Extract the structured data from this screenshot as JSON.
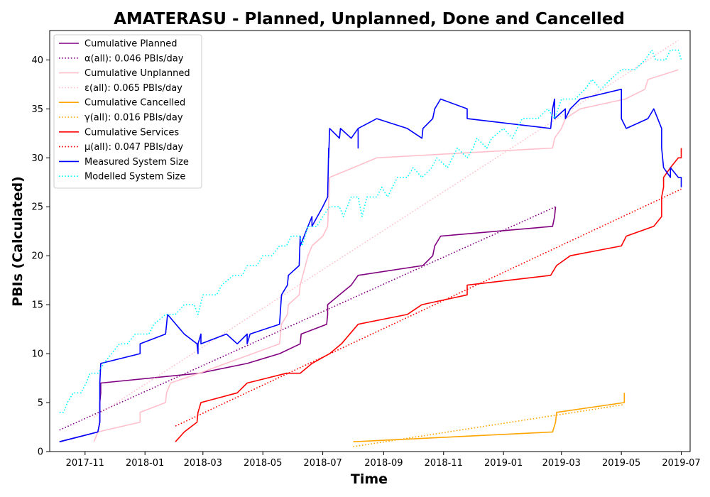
{
  "chart_data": {
    "type": "line",
    "title": "AMATERASU - Planned, Unplanned, Done  and Cancelled",
    "xlabel": "Time",
    "ylabel": "PBIs (Calculated)",
    "xlim": [
      "2017-09-26",
      "2019-07-10"
    ],
    "ylim": [
      0,
      43
    ],
    "x_ticks": [
      "2017-11",
      "2018-01",
      "2018-03",
      "2018-05",
      "2018-07",
      "2018-09",
      "2018-11",
      "2019-01",
      "2019-03",
      "2019-05",
      "2019-07"
    ],
    "y_ticks": [
      0,
      5,
      10,
      15,
      20,
      25,
      30,
      35,
      40
    ],
    "grid": false,
    "legend_position": "top-left",
    "series": [
      {
        "name": "Cumulative Planned",
        "color": "#800080",
        "style": "solid",
        "points": [
          [
            "2017-10-06",
            1
          ],
          [
            "2017-11-14",
            2
          ],
          [
            "2017-11-16",
            3
          ],
          [
            "2017-11-16",
            5
          ],
          [
            "2017-11-17",
            6
          ],
          [
            "2017-11-17",
            7
          ],
          [
            "2018-02-25",
            8
          ],
          [
            "2018-04-15",
            9
          ],
          [
            "2018-05-18",
            10
          ],
          [
            "2018-06-08",
            11
          ],
          [
            "2018-06-09",
            12
          ],
          [
            "2018-07-05",
            13
          ],
          [
            "2018-07-06",
            14
          ],
          [
            "2018-07-06",
            15
          ],
          [
            "2018-07-18",
            16
          ],
          [
            "2018-07-30",
            17
          ],
          [
            "2018-08-06",
            18
          ],
          [
            "2018-10-11",
            19
          ],
          [
            "2018-10-21",
            20
          ],
          [
            "2018-10-23",
            21
          ],
          [
            "2018-10-29",
            22
          ],
          [
            "2019-02-20",
            23
          ],
          [
            "2019-02-22",
            24
          ],
          [
            "2019-02-23",
            25
          ]
        ]
      },
      {
        "name": "α(all): 0.046 PBIs/day",
        "color": "#800080",
        "style": "dotted",
        "points": [
          [
            "2017-10-06",
            2.2
          ],
          [
            "2019-02-23",
            25
          ]
        ]
      },
      {
        "name": "Cumulative Unplanned",
        "color": "#ffc0cb",
        "style": "solid",
        "points": [
          [
            "2017-11-10",
            1
          ],
          [
            "2017-11-14",
            2
          ],
          [
            "2017-12-27",
            3
          ],
          [
            "2017-12-27",
            4
          ],
          [
            "2018-01-22",
            5
          ],
          [
            "2018-01-23",
            6
          ],
          [
            "2018-01-27",
            7
          ],
          [
            "2018-02-25",
            8
          ],
          [
            "2018-05-18",
            11
          ],
          [
            "2018-05-20",
            13
          ],
          [
            "2018-05-26",
            14
          ],
          [
            "2018-05-27",
            15
          ],
          [
            "2018-06-07",
            16
          ],
          [
            "2018-06-08",
            17
          ],
          [
            "2018-06-16",
            20
          ],
          [
            "2018-06-20",
            21
          ],
          [
            "2018-07-01",
            22
          ],
          [
            "2018-07-06",
            23
          ],
          [
            "2018-07-08",
            28
          ],
          [
            "2018-08-01",
            29
          ],
          [
            "2018-08-25",
            30
          ],
          [
            "2019-02-20",
            31
          ],
          [
            "2019-02-22",
            32
          ],
          [
            "2019-03-01",
            33
          ],
          [
            "2019-03-05",
            34
          ],
          [
            "2019-03-20",
            35
          ],
          [
            "2019-05-05",
            36
          ],
          [
            "2019-05-25",
            37
          ],
          [
            "2019-05-28",
            38
          ],
          [
            "2019-06-28",
            39
          ]
        ]
      },
      {
        "name": "ε(all): 0.065 PBIs/day",
        "color": "#ffc0cb",
        "style": "dotted",
        "points": [
          [
            "2017-11-10",
            3.5
          ],
          [
            "2019-06-28",
            42
          ]
        ]
      },
      {
        "name": "Cumulative Cancelled",
        "color": "#ffa500",
        "style": "solid",
        "points": [
          [
            "2018-08-01",
            1
          ],
          [
            "2019-02-20",
            2
          ],
          [
            "2019-02-23",
            3
          ],
          [
            "2019-02-24",
            4
          ],
          [
            "2019-05-04",
            5
          ],
          [
            "2019-05-04",
            6
          ]
        ]
      },
      {
        "name": "γ(all): 0.016 PBIs/day",
        "color": "#ffa500",
        "style": "dotted",
        "points": [
          [
            "2018-08-01",
            0.5
          ],
          [
            "2019-05-04",
            4.8
          ]
        ]
      },
      {
        "name": "Cumulative Services",
        "color": "#ff0000",
        "style": "solid",
        "points": [
          [
            "2018-02-01",
            1
          ],
          [
            "2018-02-10",
            2
          ],
          [
            "2018-02-23",
            3
          ],
          [
            "2018-02-24",
            4
          ],
          [
            "2018-02-27",
            5
          ],
          [
            "2018-04-05",
            6
          ],
          [
            "2018-04-15",
            7
          ],
          [
            "2018-05-25",
            8
          ],
          [
            "2018-06-08",
            8
          ],
          [
            "2018-06-20",
            9
          ],
          [
            "2018-07-08",
            10
          ],
          [
            "2018-07-20",
            11
          ],
          [
            "2018-08-06",
            13
          ],
          [
            "2018-09-25",
            14
          ],
          [
            "2018-10-10",
            15
          ],
          [
            "2018-11-25",
            16
          ],
          [
            "2018-11-25",
            17
          ],
          [
            "2019-02-18",
            18
          ],
          [
            "2019-02-24",
            19
          ],
          [
            "2019-03-10",
            20
          ],
          [
            "2019-05-01",
            21
          ],
          [
            "2019-05-06",
            22
          ],
          [
            "2019-06-03",
            23
          ],
          [
            "2019-06-11",
            24
          ],
          [
            "2019-06-11",
            26
          ],
          [
            "2019-06-13",
            27
          ],
          [
            "2019-06-13",
            28
          ],
          [
            "2019-06-20",
            29
          ],
          [
            "2019-06-28",
            30
          ],
          [
            "2019-07-01",
            30
          ],
          [
            "2019-07-01",
            31
          ]
        ]
      },
      {
        "name": "μ(all): 0.047 PBIs/day",
        "color": "#ff0000",
        "style": "dotted",
        "points": [
          [
            "2018-02-01",
            2.6
          ],
          [
            "2019-07-01",
            26.8
          ]
        ]
      },
      {
        "name": "Measured System Size",
        "color": "#0000ff",
        "style": "solid",
        "points": [
          [
            "2017-10-06",
            1
          ],
          [
            "2017-11-14",
            2
          ],
          [
            "2017-11-16",
            3
          ],
          [
            "2017-11-16",
            7
          ],
          [
            "2017-11-17",
            9
          ],
          [
            "2017-12-27",
            10
          ],
          [
            "2017-12-27",
            11
          ],
          [
            "2018-01-22",
            12
          ],
          [
            "2018-01-24",
            14
          ],
          [
            "2018-02-10",
            12
          ],
          [
            "2018-02-23",
            11
          ],
          [
            "2018-02-24",
            10
          ],
          [
            "2018-02-24",
            11
          ],
          [
            "2018-02-27",
            12
          ],
          [
            "2018-02-27",
            11
          ],
          [
            "2018-03-25",
            12
          ],
          [
            "2018-04-05",
            11
          ],
          [
            "2018-04-15",
            12
          ],
          [
            "2018-04-15",
            11
          ],
          [
            "2018-04-18",
            12
          ],
          [
            "2018-05-18",
            13
          ],
          [
            "2018-05-20",
            16
          ],
          [
            "2018-05-26",
            17
          ],
          [
            "2018-05-27",
            18
          ],
          [
            "2018-06-07",
            19
          ],
          [
            "2018-06-08",
            22
          ],
          [
            "2018-06-08",
            21
          ],
          [
            "2018-06-16",
            23
          ],
          [
            "2018-06-20",
            24
          ],
          [
            "2018-06-20",
            23
          ],
          [
            "2018-07-01",
            25
          ],
          [
            "2018-07-06",
            26
          ],
          [
            "2018-07-07",
            31
          ],
          [
            "2018-07-07",
            30
          ],
          [
            "2018-07-08",
            33
          ],
          [
            "2018-07-18",
            32
          ],
          [
            "2018-07-19",
            33
          ],
          [
            "2018-07-30",
            32
          ],
          [
            "2018-08-06",
            33
          ],
          [
            "2018-08-06",
            31
          ],
          [
            "2018-08-06",
            33
          ],
          [
            "2018-08-25",
            34
          ],
          [
            "2018-09-25",
            33
          ],
          [
            "2018-10-10",
            32
          ],
          [
            "2018-10-11",
            33
          ],
          [
            "2018-10-21",
            34
          ],
          [
            "2018-10-23",
            35
          ],
          [
            "2018-10-29",
            36
          ],
          [
            "2018-11-25",
            35
          ],
          [
            "2018-11-25",
            34
          ],
          [
            "2019-02-18",
            33
          ],
          [
            "2019-02-20",
            35
          ],
          [
            "2019-02-22",
            36
          ],
          [
            "2019-02-22",
            34
          ],
          [
            "2019-03-05",
            35
          ],
          [
            "2019-03-05",
            34
          ],
          [
            "2019-03-10",
            35
          ],
          [
            "2019-03-20",
            36
          ],
          [
            "2019-05-01",
            37
          ],
          [
            "2019-05-01",
            34
          ],
          [
            "2019-05-06",
            33
          ],
          [
            "2019-05-28",
            34
          ],
          [
            "2019-06-03",
            35
          ],
          [
            "2019-06-11",
            33
          ],
          [
            "2019-06-11",
            31
          ],
          [
            "2019-06-13",
            29
          ],
          [
            "2019-06-20",
            28
          ],
          [
            "2019-06-20",
            29
          ],
          [
            "2019-06-28",
            28
          ],
          [
            "2019-07-01",
            28
          ],
          [
            "2019-07-01",
            27
          ]
        ]
      },
      {
        "name": "Modelled System Size",
        "color": "#00ffff",
        "style": "dotted",
        "points": [
          [
            "2017-10-06",
            4
          ],
          [
            "2017-10-10",
            4
          ],
          [
            "2017-10-14",
            5
          ],
          [
            "2017-10-20",
            6
          ],
          [
            "2017-10-28",
            6
          ],
          [
            "2017-11-02",
            7
          ],
          [
            "2017-11-06",
            8
          ],
          [
            "2017-11-14",
            8
          ],
          [
            "2017-11-20",
            9
          ],
          [
            "2017-11-28",
            10
          ],
          [
            "2017-12-06",
            11
          ],
          [
            "2017-12-14",
            11
          ],
          [
            "2017-12-22",
            12
          ],
          [
            "2018-01-05",
            12
          ],
          [
            "2018-01-10",
            13
          ],
          [
            "2018-01-22",
            14
          ],
          [
            "2018-02-01",
            14
          ],
          [
            "2018-02-10",
            15
          ],
          [
            "2018-02-20",
            15
          ],
          [
            "2018-02-24",
            14
          ],
          [
            "2018-03-01",
            16
          ],
          [
            "2018-03-15",
            16
          ],
          [
            "2018-03-20",
            17
          ],
          [
            "2018-04-01",
            18
          ],
          [
            "2018-04-10",
            18
          ],
          [
            "2018-04-15",
            19
          ],
          [
            "2018-04-25",
            19
          ],
          [
            "2018-05-01",
            20
          ],
          [
            "2018-05-10",
            20
          ],
          [
            "2018-05-18",
            21
          ],
          [
            "2018-05-25",
            21
          ],
          [
            "2018-05-30",
            22
          ],
          [
            "2018-06-08",
            22
          ],
          [
            "2018-06-10",
            21
          ],
          [
            "2018-06-16",
            23
          ],
          [
            "2018-06-25",
            23
          ],
          [
            "2018-07-01",
            24
          ],
          [
            "2018-07-08",
            25
          ],
          [
            "2018-07-18",
            25
          ],
          [
            "2018-07-22",
            24
          ],
          [
            "2018-07-30",
            26
          ],
          [
            "2018-08-06",
            26
          ],
          [
            "2018-08-10",
            24
          ],
          [
            "2018-08-15",
            26
          ],
          [
            "2018-08-25",
            26
          ],
          [
            "2018-08-30",
            27
          ],
          [
            "2018-09-05",
            26
          ],
          [
            "2018-09-10",
            27
          ],
          [
            "2018-09-15",
            28
          ],
          [
            "2018-09-25",
            28
          ],
          [
            "2018-10-01",
            29
          ],
          [
            "2018-10-10",
            28
          ],
          [
            "2018-10-20",
            29
          ],
          [
            "2018-10-25",
            30
          ],
          [
            "2018-11-05",
            29
          ],
          [
            "2018-11-15",
            31
          ],
          [
            "2018-11-25",
            30
          ],
          [
            "2018-12-01",
            31
          ],
          [
            "2018-12-05",
            32
          ],
          [
            "2018-12-15",
            31
          ],
          [
            "2018-12-20",
            32
          ],
          [
            "2019-01-01",
            33
          ],
          [
            "2019-01-10",
            32
          ],
          [
            "2019-01-20",
            34
          ],
          [
            "2019-02-05",
            34
          ],
          [
            "2019-02-15",
            35
          ],
          [
            "2019-02-22",
            34
          ],
          [
            "2019-03-01",
            36
          ],
          [
            "2019-03-15",
            36
          ],
          [
            "2019-03-25",
            37
          ],
          [
            "2019-04-01",
            38
          ],
          [
            "2019-04-10",
            37
          ],
          [
            "2019-04-20",
            38
          ],
          [
            "2019-05-01",
            39
          ],
          [
            "2019-05-15",
            39
          ],
          [
            "2019-05-25",
            40
          ],
          [
            "2019-06-01",
            41
          ],
          [
            "2019-06-05",
            40
          ],
          [
            "2019-06-15",
            40
          ],
          [
            "2019-06-20",
            41
          ],
          [
            "2019-06-28",
            41
          ],
          [
            "2019-07-01",
            40
          ]
        ]
      }
    ]
  }
}
